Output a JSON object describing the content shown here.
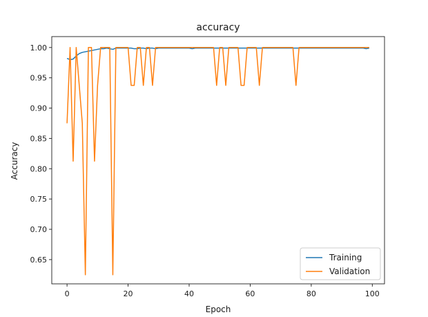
{
  "chart_data": {
    "type": "line",
    "title": "accuracy",
    "xlabel": "Epoch",
    "ylabel": "Accuracy",
    "xlim": [
      -5,
      104
    ],
    "ylim": [
      0.61,
      1.018
    ],
    "xticks": [
      0,
      20,
      40,
      60,
      80,
      100
    ],
    "yticks": [
      0.65,
      0.7,
      0.75,
      0.8,
      0.85,
      0.9,
      0.95,
      1.0
    ],
    "legend": "lower-right",
    "grid": false,
    "series": [
      {
        "name": "Training",
        "color": "#1f77b4",
        "x": [
          0,
          1,
          2,
          3,
          4,
          5,
          6,
          7,
          8,
          9,
          10,
          11,
          12,
          13,
          14,
          15,
          16,
          17,
          18,
          19,
          20,
          21,
          22,
          23,
          24,
          25,
          26,
          27,
          28,
          29,
          30,
          31,
          32,
          33,
          34,
          35,
          36,
          37,
          38,
          39,
          40,
          41,
          42,
          43,
          44,
          45,
          46,
          47,
          48,
          49,
          50,
          51,
          52,
          53,
          54,
          55,
          56,
          57,
          58,
          59,
          60,
          61,
          62,
          63,
          64,
          65,
          66,
          67,
          68,
          69,
          70,
          71,
          72,
          73,
          74,
          75,
          76,
          77,
          78,
          79,
          80,
          81,
          82,
          83,
          84,
          85,
          86,
          87,
          88,
          89,
          90,
          91,
          92,
          93,
          94,
          95,
          96,
          97,
          98,
          99
        ],
        "y": [
          0.982,
          0.98,
          0.981,
          0.986,
          0.99,
          0.992,
          0.993,
          0.994,
          0.995,
          0.996,
          0.997,
          0.998,
          0.998,
          0.999,
          0.998,
          0.997,
          0.999,
          0.999,
          0.999,
          0.999,
          0.999,
          0.999,
          0.998,
          0.998,
          0.999,
          0.999,
          0.998,
          0.999,
          0.999,
          0.998,
          0.999,
          0.999,
          0.999,
          0.999,
          0.999,
          0.999,
          0.999,
          0.999,
          0.999,
          0.999,
          0.999,
          0.998,
          0.999,
          0.999,
          0.999,
          0.999,
          0.999,
          0.999,
          0.999,
          0.999,
          0.999,
          0.999,
          0.999,
          0.999,
          0.999,
          0.999,
          0.999,
          0.999,
          0.999,
          0.999,
          0.999,
          0.999,
          0.999,
          0.999,
          0.999,
          0.999,
          0.999,
          0.999,
          0.999,
          0.999,
          0.999,
          0.999,
          0.999,
          0.999,
          0.999,
          0.999,
          0.999,
          0.999,
          0.999,
          0.999,
          0.999,
          0.999,
          0.999,
          0.999,
          0.999,
          0.999,
          0.999,
          0.999,
          0.999,
          0.999,
          0.999,
          0.999,
          0.999,
          0.999,
          0.999,
          0.999,
          0.999,
          0.999,
          0.998,
          0.999
        ]
      },
      {
        "name": "Validation",
        "color": "#ff7f0e",
        "x": [
          0,
          1,
          2,
          3,
          4,
          5,
          6,
          7,
          8,
          9,
          10,
          11,
          12,
          13,
          14,
          15,
          16,
          17,
          18,
          19,
          20,
          21,
          22,
          23,
          24,
          25,
          26,
          27,
          28,
          29,
          30,
          31,
          32,
          33,
          34,
          35,
          36,
          37,
          38,
          39,
          40,
          41,
          42,
          43,
          44,
          45,
          46,
          47,
          48,
          49,
          50,
          51,
          52,
          53,
          54,
          55,
          56,
          57,
          58,
          59,
          60,
          61,
          62,
          63,
          64,
          65,
          66,
          67,
          68,
          69,
          70,
          71,
          72,
          73,
          74,
          75,
          76,
          77,
          78,
          79,
          80,
          81,
          82,
          83,
          84,
          85,
          86,
          87,
          88,
          89,
          90,
          91,
          92,
          93,
          94,
          95,
          96,
          97,
          98,
          99
        ],
        "y": [
          0.875,
          1.0,
          0.8125,
          1.0,
          0.9375,
          0.875,
          0.625,
          1.0,
          1.0,
          0.8125,
          0.9375,
          1.0,
          1.0,
          1.0,
          1.0,
          0.625,
          1.0,
          1.0,
          1.0,
          1.0,
          1.0,
          0.9375,
          0.9375,
          1.0,
          1.0,
          0.9375,
          1.0,
          1.0,
          0.9375,
          1.0,
          1.0,
          1.0,
          1.0,
          1.0,
          1.0,
          1.0,
          1.0,
          1.0,
          1.0,
          1.0,
          1.0,
          1.0,
          1.0,
          1.0,
          1.0,
          1.0,
          1.0,
          1.0,
          1.0,
          0.9375,
          1.0,
          1.0,
          0.9375,
          1.0,
          1.0,
          1.0,
          1.0,
          0.9375,
          0.9375,
          1.0,
          1.0,
          1.0,
          1.0,
          0.9375,
          1.0,
          1.0,
          1.0,
          1.0,
          1.0,
          1.0,
          1.0,
          1.0,
          1.0,
          1.0,
          1.0,
          0.9375,
          1.0,
          1.0,
          1.0,
          1.0,
          1.0,
          1.0,
          1.0,
          1.0,
          1.0,
          1.0,
          1.0,
          1.0,
          1.0,
          1.0,
          1.0,
          1.0,
          1.0,
          1.0,
          1.0,
          1.0,
          1.0,
          1.0,
          1.0,
          1.0
        ]
      }
    ]
  }
}
